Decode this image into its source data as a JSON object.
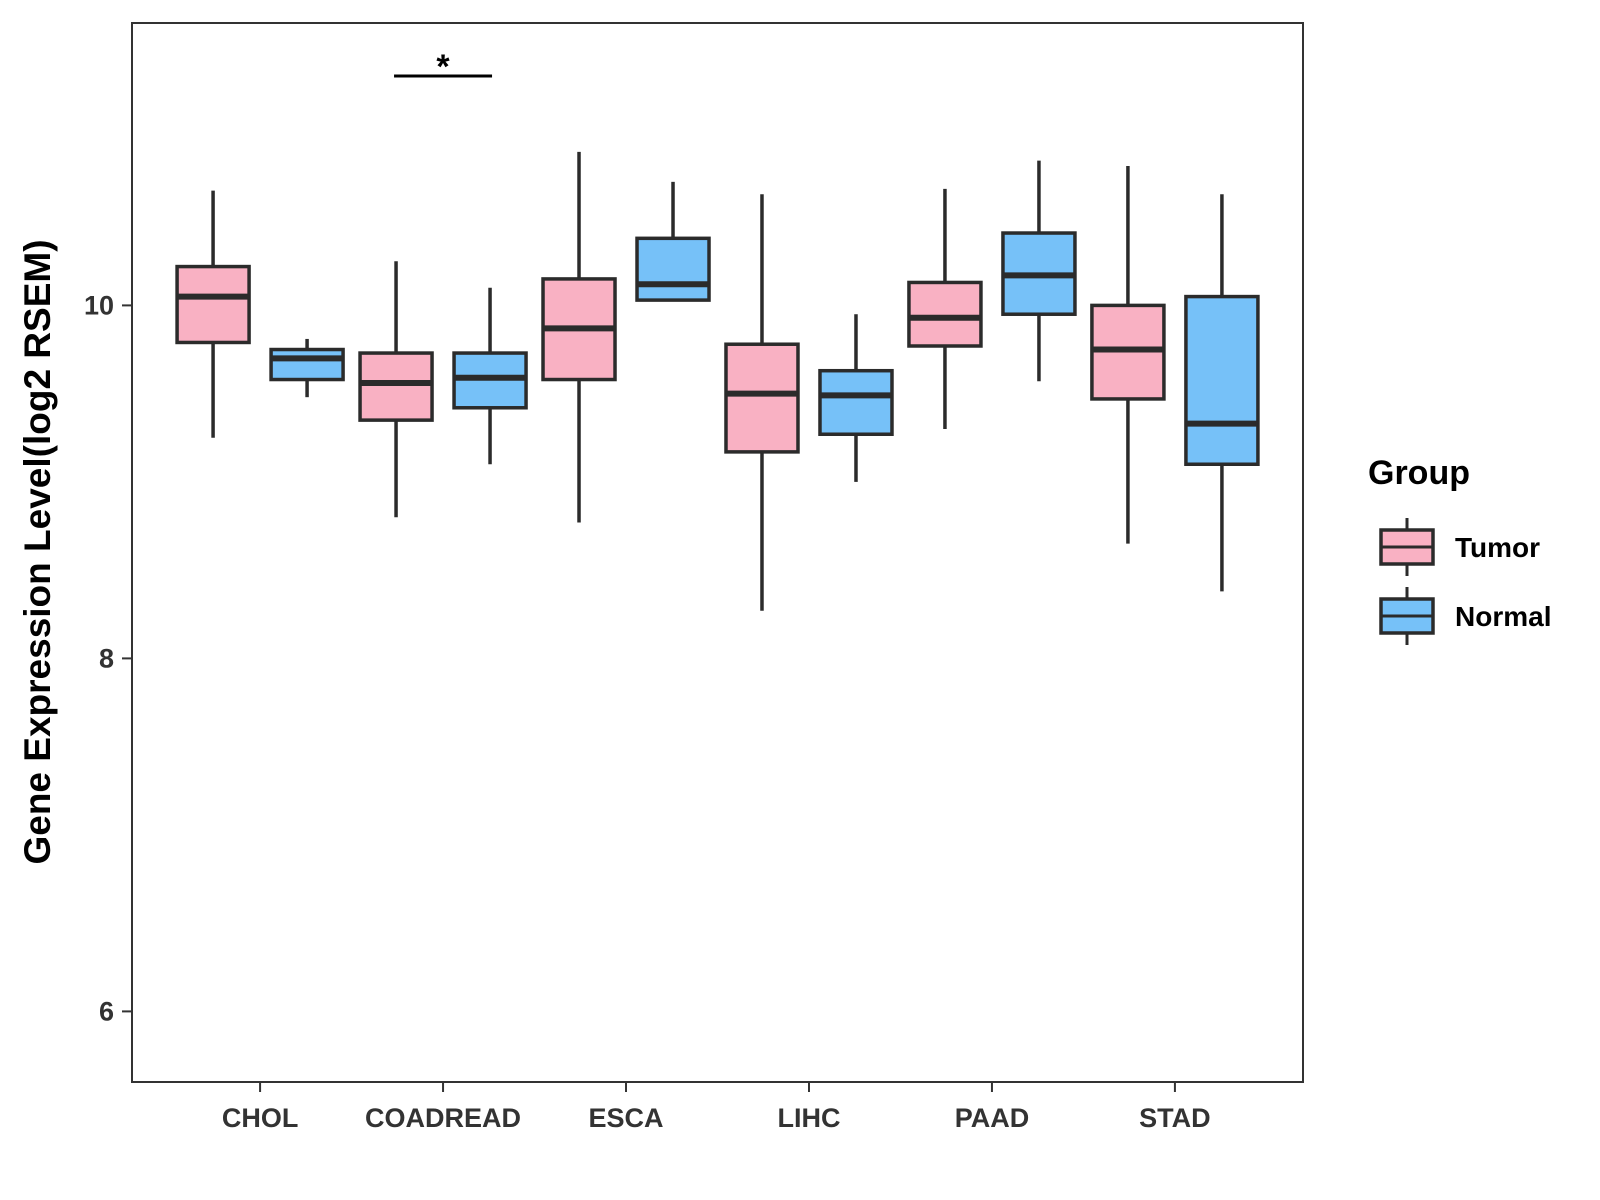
{
  "chart_data": {
    "type": "boxplot",
    "title": "",
    "xlabel": "",
    "ylabel": "Gene Expression Level(log2 RSEM)",
    "ylim": [
      5.6,
      11.6
    ],
    "yticks": [
      6,
      8,
      10
    ],
    "ytick_labels": [
      "6",
      "8",
      "10"
    ],
    "categories": [
      "CHOL",
      "COADREAD",
      "ESCA",
      "LIHC",
      "PAAD",
      "STAD"
    ],
    "legend": {
      "title": "Group",
      "position": "right",
      "entries": [
        {
          "name": "Tumor",
          "color": "#F9B1C3"
        },
        {
          "name": "Normal",
          "color": "#76C1F8"
        }
      ]
    },
    "series": [
      {
        "name": "Tumor",
        "color": "#F9B1C3",
        "boxes": [
          {
            "category": "CHOL",
            "min": 9.25,
            "q1": 9.79,
            "median": 10.05,
            "q3": 10.22,
            "max": 10.65
          },
          {
            "category": "COADREAD",
            "min": 8.8,
            "q1": 9.35,
            "median": 9.56,
            "q3": 9.73,
            "max": 10.25
          },
          {
            "category": "ESCA",
            "min": 8.77,
            "q1": 9.58,
            "median": 9.87,
            "q3": 10.15,
            "max": 10.87
          },
          {
            "category": "LIHC",
            "min": 8.27,
            "q1": 9.17,
            "median": 9.5,
            "q3": 9.78,
            "max": 10.63
          },
          {
            "category": "PAAD",
            "min": 9.3,
            "q1": 9.77,
            "median": 9.93,
            "q3": 10.13,
            "max": 10.66
          },
          {
            "category": "STAD",
            "min": 8.65,
            "q1": 9.47,
            "median": 9.75,
            "q3": 10.0,
            "max": 10.79
          }
        ]
      },
      {
        "name": "Normal",
        "color": "#76C1F8",
        "boxes": [
          {
            "category": "CHOL",
            "min": 9.48,
            "q1": 9.58,
            "median": 9.7,
            "q3": 9.75,
            "max": 9.81
          },
          {
            "category": "COADREAD",
            "min": 9.1,
            "q1": 9.42,
            "median": 9.59,
            "q3": 9.73,
            "max": 10.1
          },
          {
            "category": "ESCA",
            "min": 10.03,
            "q1": 10.03,
            "median": 10.12,
            "q3": 10.38,
            "max": 10.7
          },
          {
            "category": "LIHC",
            "min": 9.0,
            "q1": 9.27,
            "median": 9.49,
            "q3": 9.63,
            "max": 9.95
          },
          {
            "category": "PAAD",
            "min": 9.57,
            "q1": 9.95,
            "median": 10.17,
            "q3": 10.41,
            "max": 10.82
          },
          {
            "category": "STAD",
            "min": 8.38,
            "q1": 9.1,
            "median": 9.33,
            "q3": 10.05,
            "max": 10.63
          }
        ]
      }
    ],
    "annotations": [
      {
        "category": "COADREAD",
        "text": "*",
        "y": 11.3
      }
    ]
  }
}
